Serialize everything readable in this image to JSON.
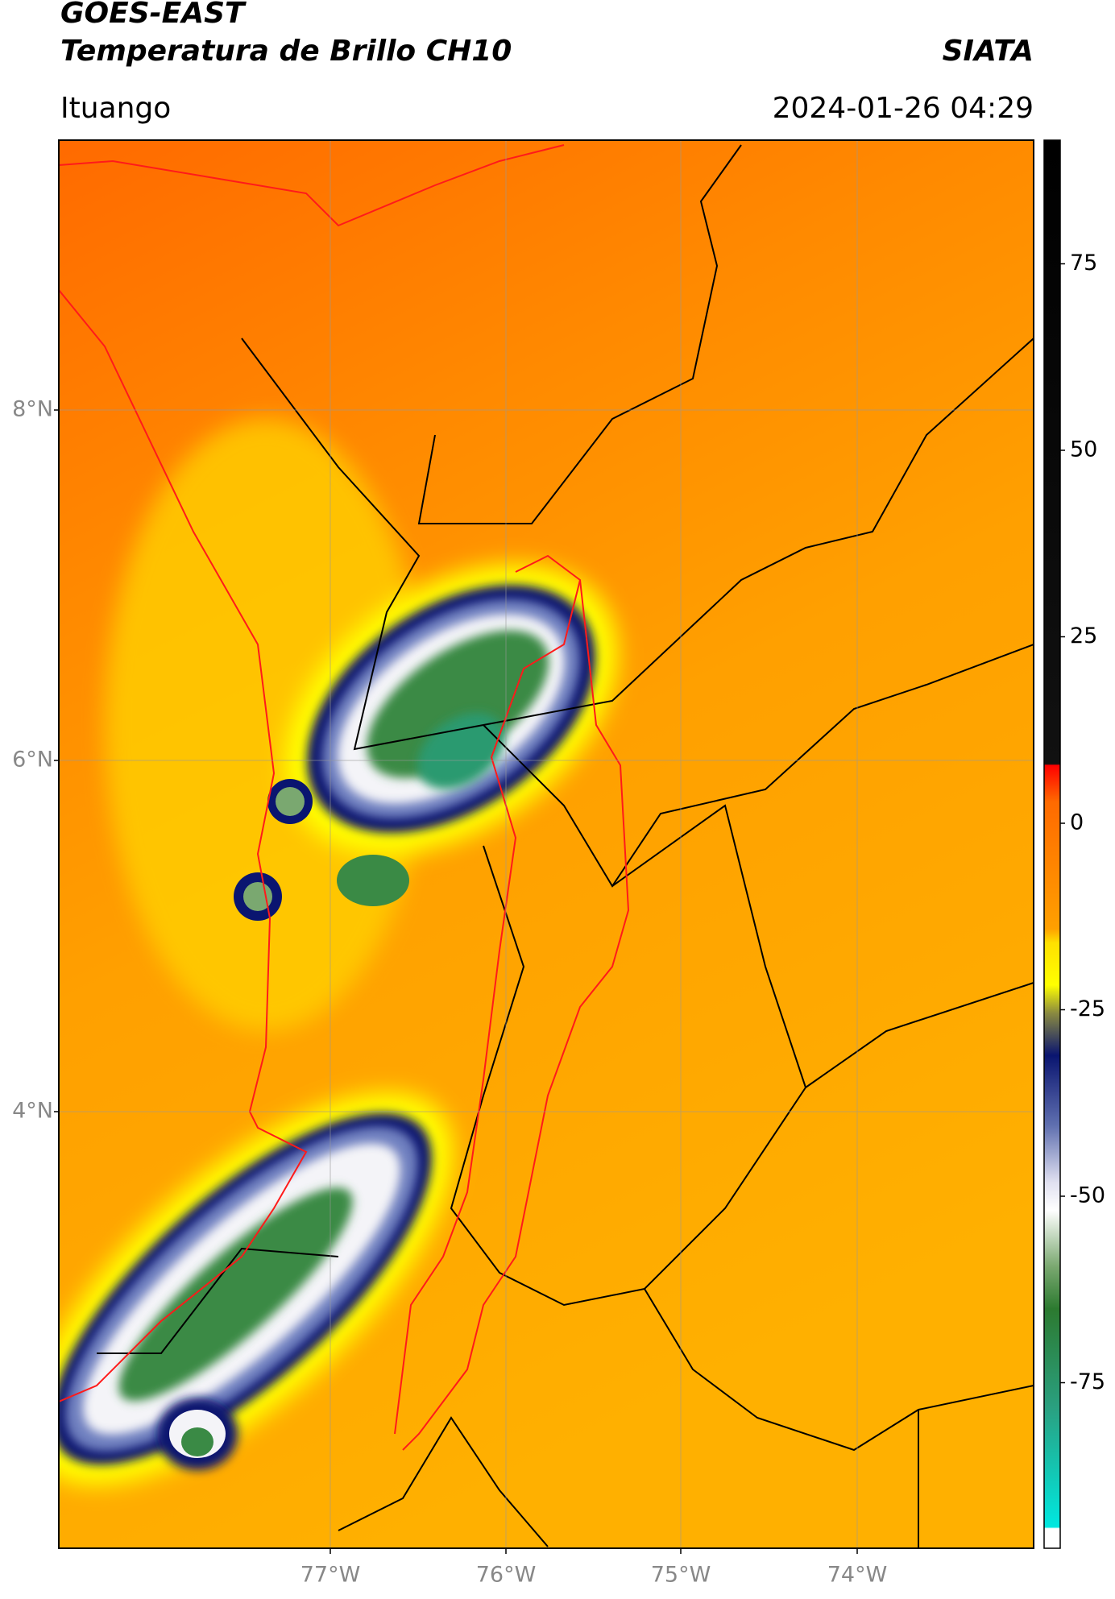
{
  "header": {
    "title": "GOES-EAST",
    "subtitle": "Temperatura de Brillo CH10",
    "source": "SIATA",
    "location": "Ituango",
    "datetime": "2024-01-26 04:29"
  },
  "map": {
    "lat_labels": [
      "8°N",
      "6°N",
      "4°N"
    ],
    "lon_labels": [
      "77°W",
      "76°W",
      "75°W",
      "74°W"
    ]
  },
  "colorbar": {
    "ticks": [
      75,
      50,
      25,
      0,
      -25,
      -50,
      -75
    ]
  }
}
